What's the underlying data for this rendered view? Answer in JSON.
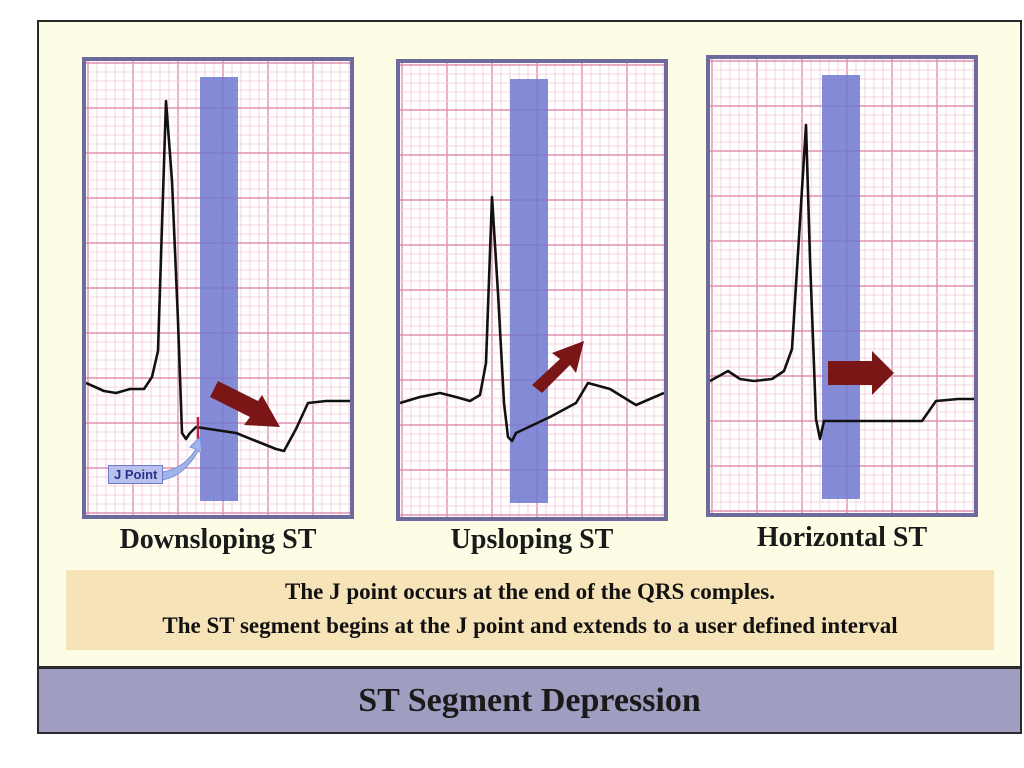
{
  "panels": [
    {
      "label": "Downsloping ST",
      "type": "downsloping"
    },
    {
      "label": "Upsloping ST",
      "type": "upsloping"
    },
    {
      "label": "Horizontal ST",
      "type": "horizontal"
    }
  ],
  "j_point_label": "J Point",
  "note": {
    "line1": "The J point occurs at the end of the QRS comples.",
    "line2": "The ST segment begins at the J point and extends to a user defined interval"
  },
  "footer_title": "ST Segment Depression",
  "colors": {
    "grid_minor": "#f3c9da",
    "grid_major": "#e08fb0",
    "highlight_band": "#6f78d0",
    "arrow": "#7a1616",
    "trace": "#111111",
    "panel_border": "#6d6a9c",
    "note_bg": "#f6e3b8",
    "footer_bg": "#a09ec0"
  },
  "icons": [
    "arrow-icon",
    "j-point-pointer-icon"
  ]
}
